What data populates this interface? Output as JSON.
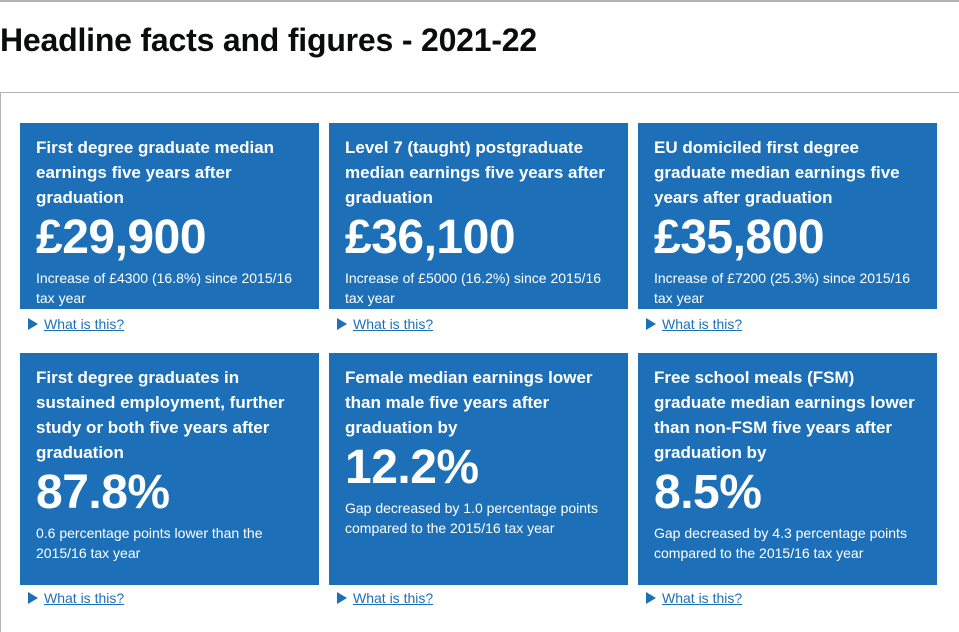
{
  "page": {
    "title": "Headline facts and figures - 2021-22"
  },
  "details_label": "What is this?",
  "tiles": [
    {
      "heading": "First degree graduate median earnings five years after graduation",
      "value": "£29,900",
      "description": "Increase of £4300 (16.8%) since 2015/16 tax year"
    },
    {
      "heading": "Level 7 (taught) postgraduate median earnings five years after graduation",
      "value": "£36,100",
      "description": "Increase of £5000 (16.2%) since 2015/16 tax year"
    },
    {
      "heading": "EU domiciled first degree graduate median earnings five years after graduation",
      "value": "£35,800",
      "description": "Increase of £7200 (25.3%) since 2015/16 tax year"
    },
    {
      "heading": "First degree graduates in sustained employment, further study or both five years after graduation",
      "value": "87.8%",
      "description": "0.6 percentage points lower than the 2015/16 tax year"
    },
    {
      "heading": "Female median earnings lower than male five years after graduation by",
      "value": "12.2%",
      "description": "Gap decreased by 1.0 percentage points compared to the 2015/16 tax year"
    },
    {
      "heading": "Free school meals (FSM) graduate median earnings lower than non-FSM five years after graduation by",
      "value": "8.5%",
      "description": "Gap decreased by 4.3 percentage points compared to the 2015/16 tax year"
    }
  ],
  "colors": {
    "tile": "#1d70b8",
    "link": "#1d70b8",
    "text": "#0b0c0c"
  },
  "icons": {
    "details_toggle": "triangle-right-icon"
  }
}
